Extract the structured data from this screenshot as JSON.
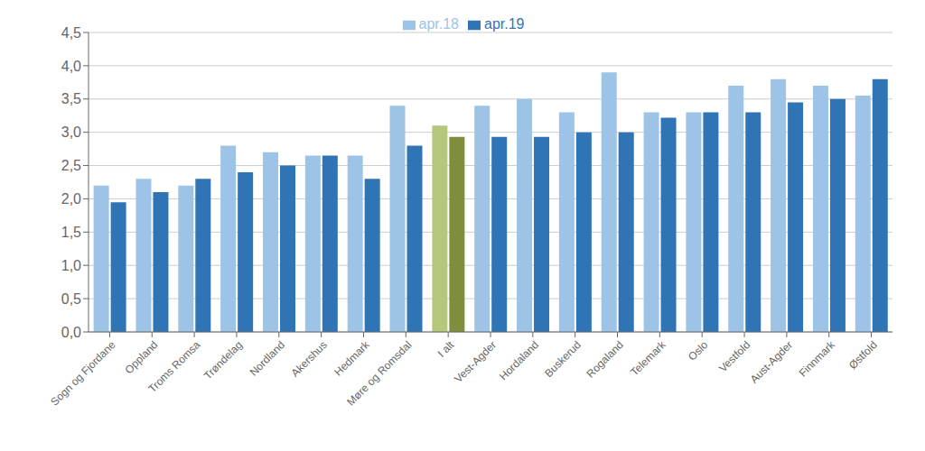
{
  "chart_data": {
    "type": "bar",
    "categories": [
      "Sogn og Fjordane",
      "Oppland",
      "Troms Romsa",
      "Trøndelag",
      "Nordland",
      "Akershus",
      "Hedmark",
      "Møre og Romsdal",
      "I alt",
      "Vest-Agder",
      "Hordaland",
      "Buskerud",
      "Rogaland",
      "Telemark",
      "Oslo",
      "Vestfold",
      "Aust-Agder",
      "Finnmark",
      "Østfold"
    ],
    "series": [
      {
        "name": "apr.18",
        "color": "#9DC3E6",
        "colors": [
          "#9DC3E6",
          "#9DC3E6",
          "#9DC3E6",
          "#9DC3E6",
          "#9DC3E6",
          "#9DC3E6",
          "#9DC3E6",
          "#9DC3E6",
          "#B5C77A",
          "#9DC3E6",
          "#9DC3E6",
          "#9DC3E6",
          "#9DC3E6",
          "#9DC3E6",
          "#9DC3E6",
          "#9DC3E6",
          "#9DC3E6",
          "#9DC3E6",
          "#9DC3E6"
        ],
        "values": [
          2.2,
          2.3,
          2.2,
          2.8,
          2.7,
          2.65,
          2.65,
          3.4,
          3.1,
          3.4,
          3.5,
          3.3,
          3.9,
          3.3,
          3.3,
          3.7,
          3.8,
          3.7,
          3.55
        ]
      },
      {
        "name": "apr.19",
        "color": "#2F75B6",
        "colors": [
          "#2F75B6",
          "#2F75B6",
          "#2F75B6",
          "#2F75B6",
          "#2F75B6",
          "#2F75B6",
          "#2F75B6",
          "#2F75B6",
          "#7D8F3A",
          "#2F75B6",
          "#2F75B6",
          "#2F75B6",
          "#2F75B6",
          "#2F75B6",
          "#2F75B6",
          "#2F75B6",
          "#2F75B6",
          "#2F75B6",
          "#2F75B6"
        ],
        "values": [
          1.95,
          2.1,
          2.3,
          2.4,
          2.5,
          2.65,
          2.3,
          2.8,
          2.93,
          2.93,
          2.93,
          3.0,
          3.0,
          3.22,
          3.3,
          3.3,
          3.45,
          3.5,
          3.8
        ]
      }
    ],
    "ylim": [
      0,
      4.5
    ],
    "yticks": [
      {
        "value": 0.0,
        "label": "0,0"
      },
      {
        "value": 0.5,
        "label": "0,5"
      },
      {
        "value": 1.0,
        "label": "1,0"
      },
      {
        "value": 1.5,
        "label": "1,5"
      },
      {
        "value": 2.0,
        "label": "2,0"
      },
      {
        "value": 2.5,
        "label": "2,5"
      },
      {
        "value": 3.0,
        "label": "3,0"
      },
      {
        "value": 3.5,
        "label": "3,5"
      },
      {
        "value": 4.0,
        "label": "4,0"
      },
      {
        "value": 4.5,
        "label": "4,5"
      }
    ],
    "grid": true,
    "legend": "top"
  }
}
